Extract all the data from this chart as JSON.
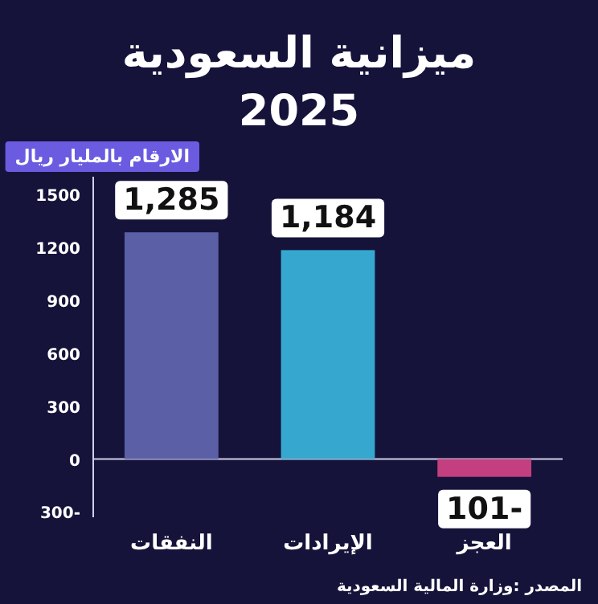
{
  "chart_data": {
    "type": "bar",
    "title": "ميزانية السعودية\n2025",
    "subtitle": "الارقام بالمليار ريال",
    "categories": [
      "النفقات",
      "الإيرادات",
      "العجز"
    ],
    "values": [
      1285,
      1184,
      -101
    ],
    "colors": [
      "#5b5fa6",
      "#36a8cf",
      "#c33f7f"
    ],
    "value_labels": [
      "1,285",
      "1,184",
      "-101"
    ],
    "ylim": [
      -330,
      1600
    ],
    "yticks": [
      1500,
      1200,
      900,
      600,
      300,
      0,
      {
        "value": -300,
        "label": "300-"
      }
    ],
    "annotations": [
      "المصدر :وزارة المالية السعودية"
    ]
  }
}
